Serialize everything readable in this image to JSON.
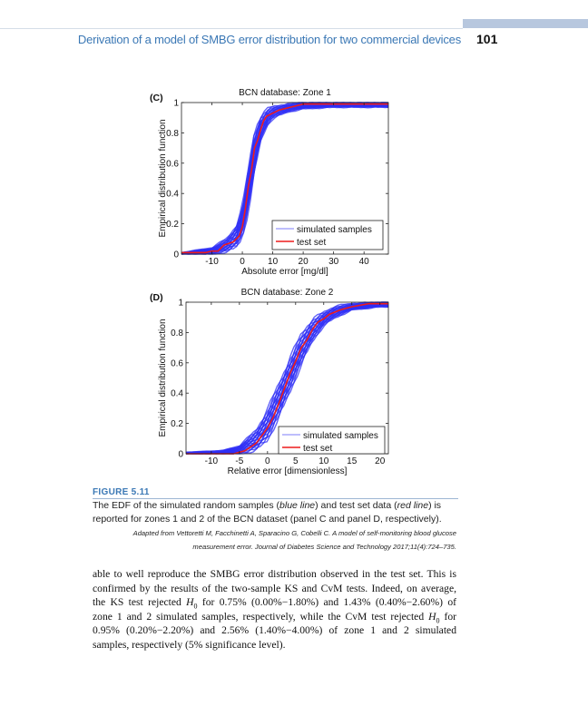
{
  "header": {
    "running_title": "Derivation of a model of SMBG error distribution for two commercial devices",
    "page_number": "101",
    "accent_color": "#3b78b5"
  },
  "chart_data": [
    {
      "type": "line",
      "panel_label": "(C)",
      "title": "BCN database: Zone 1",
      "xlabel": "Absolute error [mg/dl]",
      "ylabel": "Empirical distribution function",
      "xlim": [
        -20,
        48
      ],
      "ylim": [
        0,
        1
      ],
      "xticks": [
        "-10",
        "0",
        "10",
        "20",
        "30",
        "40"
      ],
      "xtick_values": [
        -10,
        0,
        10,
        20,
        30,
        40
      ],
      "yticks": [
        "0",
        "0.2",
        "0.4",
        "0.6",
        "0.8",
        "1"
      ],
      "ytick_values": [
        0,
        0.2,
        0.4,
        0.6,
        0.8,
        1
      ],
      "grid": false,
      "legend_position": "bottom-right",
      "series": [
        {
          "name": "simulated samples",
          "color": "#2f2ff5",
          "kind": "band",
          "x": [
            -20,
            -10,
            -5,
            -2,
            0,
            2,
            4,
            6,
            8,
            10,
            15,
            20,
            30,
            48
          ],
          "lower": [
            0,
            0,
            0.02,
            0.05,
            0.12,
            0.3,
            0.55,
            0.75,
            0.85,
            0.9,
            0.94,
            0.96,
            0.97,
            0.97
          ],
          "upper": [
            0.01,
            0.04,
            0.1,
            0.18,
            0.3,
            0.55,
            0.8,
            0.9,
            0.95,
            0.97,
            0.99,
            1,
            1,
            1
          ]
        },
        {
          "name": "test set",
          "color": "#ee1c1c",
          "kind": "line",
          "x": [
            -20,
            -12,
            -10,
            -8,
            -6,
            -3,
            -1,
            0,
            1,
            2,
            3,
            4,
            5,
            6,
            7,
            8,
            10,
            12,
            16,
            20,
            48
          ],
          "y": [
            0.01,
            0.01,
            0.02,
            0.02,
            0.06,
            0.08,
            0.12,
            0.18,
            0.3,
            0.45,
            0.55,
            0.7,
            0.75,
            0.82,
            0.88,
            0.91,
            0.93,
            0.95,
            0.97,
            0.99,
            0.99
          ]
        }
      ]
    },
    {
      "type": "line",
      "panel_label": "(D)",
      "title": "BCN database: Zone 2",
      "xlabel": "Relative error [dimensionless]",
      "ylabel": "Empirical distribution function",
      "xlim": [
        -14.5,
        21.5
      ],
      "ylim": [
        0,
        1
      ],
      "xticks": [
        "-10",
        "-5",
        "0",
        "5",
        "10",
        "15",
        "20"
      ],
      "xtick_values": [
        -10,
        -5,
        0,
        5,
        10,
        15,
        20
      ],
      "yticks": [
        "0",
        "0.2",
        "0.4",
        "0.6",
        "0.8",
        "1"
      ],
      "ytick_values": [
        0,
        0.2,
        0.4,
        0.6,
        0.8,
        1
      ],
      "grid": false,
      "legend_position": "bottom-right",
      "series": [
        {
          "name": "simulated samples",
          "color": "#2f2ff5",
          "kind": "band",
          "x": [
            -14.5,
            -8,
            -5,
            -2,
            0,
            2,
            4,
            6,
            8,
            10,
            12,
            15,
            20,
            21.5
          ],
          "lower": [
            0,
            0,
            0,
            0.03,
            0.1,
            0.25,
            0.42,
            0.6,
            0.75,
            0.85,
            0.9,
            0.95,
            0.97,
            0.97
          ],
          "upper": [
            0.01,
            0.02,
            0.05,
            0.15,
            0.28,
            0.45,
            0.62,
            0.78,
            0.88,
            0.93,
            0.97,
            0.99,
            1,
            1
          ]
        },
        {
          "name": "test set",
          "color": "#ee1c1c",
          "kind": "line",
          "x": [
            -14.5,
            -6,
            -4,
            -2,
            0,
            1,
            2,
            3,
            4,
            5,
            6,
            7,
            8,
            9,
            10,
            11,
            13,
            15,
            18,
            21.5
          ],
          "y": [
            0,
            0,
            0.02,
            0.07,
            0.17,
            0.24,
            0.33,
            0.43,
            0.53,
            0.61,
            0.7,
            0.75,
            0.82,
            0.87,
            0.89,
            0.92,
            0.95,
            0.97,
            0.99,
            0.99
          ]
        }
      ]
    }
  ],
  "figure": {
    "label": "FIGURE 5.11",
    "caption_lines": [
      [
        "The EDF of the simulated random samples (",
        "blue line",
        ") and test set data (",
        "red line",
        ") is"
      ],
      "reported for zones 1 and 2 of the BCN dataset (panel C and panel D, respectively)."
    ],
    "source_lines": [
      "Adapted from Vettoretti M, Facchinetti A, Sparacino G, Cobelli C. A model of self-monitoring blood glucose",
      "measurement error. Journal of Diabetes Science and Technology 2017;11(4):724–735."
    ]
  },
  "body_lines": [
    "able to well reproduce the SMBG error distribution observed in the test set. This is",
    "confirmed by the results of the two-sample KS and CvM tests. Indeed, on average,",
    [
      "the KS test rejected ",
      "H",
      "0",
      " for 0.75% (0.00%−1.80%) and 1.43% (0.40%−2.60%) of"
    ],
    [
      "zone 1 and 2 simulated samples, respectively, while the CvM test rejected ",
      "H",
      "0",
      " for"
    ],
    "0.95% (0.20%−2.20%) and 2.56% (1.40%−4.00%) of zone 1 and 2 simulated",
    "samples, respectively (5% significance level)."
  ]
}
